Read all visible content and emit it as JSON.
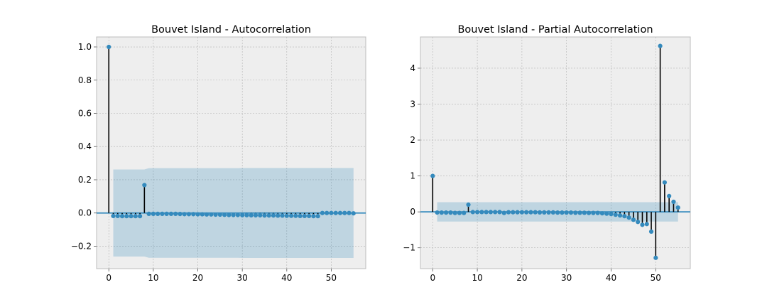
{
  "chart_data": [
    {
      "type": "stem",
      "title": "Bouvet Island - Autocorrelation",
      "xlabel": "",
      "ylabel": "",
      "xlim": [
        -2.75,
        57.75
      ],
      "ylim": [
        -0.335,
        1.06
      ],
      "grid": true,
      "x_ticks": [
        0,
        10,
        20,
        30,
        40,
        50
      ],
      "x_tick_labels": [
        "0",
        "10",
        "20",
        "30",
        "40",
        "50"
      ],
      "y_ticks": [
        -0.2,
        0.0,
        0.2,
        0.4,
        0.6,
        0.8,
        1.0
      ],
      "y_tick_labels": [
        "−0.2",
        "0.0",
        "0.2",
        "0.4",
        "0.6",
        "0.8",
        "1.0"
      ],
      "x": [
        0,
        1,
        2,
        3,
        4,
        5,
        6,
        7,
        8,
        9,
        10,
        11,
        12,
        13,
        14,
        15,
        16,
        17,
        18,
        19,
        20,
        21,
        22,
        23,
        24,
        25,
        26,
        27,
        28,
        29,
        30,
        31,
        32,
        33,
        34,
        35,
        36,
        37,
        38,
        39,
        40,
        41,
        42,
        43,
        44,
        45,
        46,
        47,
        48,
        49,
        50,
        51,
        52,
        53,
        54,
        55
      ],
      "values": [
        1.0,
        -0.018,
        -0.018,
        -0.019,
        -0.019,
        -0.019,
        -0.019,
        -0.019,
        0.168,
        -0.005,
        -0.005,
        -0.005,
        -0.005,
        -0.005,
        -0.005,
        -0.005,
        -0.006,
        -0.007,
        -0.007,
        -0.007,
        -0.008,
        -0.008,
        -0.009,
        -0.009,
        -0.01,
        -0.01,
        -0.011,
        -0.012,
        -0.012,
        -0.012,
        -0.013,
        -0.013,
        -0.014,
        -0.014,
        -0.014,
        -0.015,
        -0.015,
        -0.015,
        -0.016,
        -0.016,
        -0.017,
        -0.017,
        -0.017,
        -0.018,
        -0.018,
        -0.018,
        -0.019,
        -0.019,
        0.0,
        0.0,
        0.0,
        0.0,
        0.0,
        0.0,
        0.0,
        -0.002
      ],
      "confidence_band": {
        "x": [
          1,
          2,
          3,
          4,
          5,
          6,
          7,
          8,
          9,
          10,
          11,
          12,
          13,
          14,
          15,
          16,
          17,
          18,
          19,
          20,
          21,
          22,
          23,
          24,
          25,
          26,
          27,
          28,
          29,
          30,
          31,
          32,
          33,
          34,
          35,
          36,
          37,
          38,
          39,
          40,
          41,
          42,
          43,
          44,
          45,
          46,
          47,
          48,
          49,
          50,
          51,
          52,
          53,
          54,
          55
        ],
        "upper": [
          0.262,
          0.262,
          0.262,
          0.262,
          0.262,
          0.262,
          0.262,
          0.262,
          0.27,
          0.27,
          0.27,
          0.27,
          0.27,
          0.27,
          0.27,
          0.27,
          0.27,
          0.27,
          0.27,
          0.27,
          0.27,
          0.27,
          0.27,
          0.27,
          0.27,
          0.27,
          0.27,
          0.27,
          0.27,
          0.271,
          0.271,
          0.271,
          0.271,
          0.271,
          0.271,
          0.271,
          0.271,
          0.271,
          0.271,
          0.271,
          0.271,
          0.271,
          0.271,
          0.271,
          0.271,
          0.271,
          0.271,
          0.271,
          0.271,
          0.271,
          0.271,
          0.271,
          0.271,
          0.271,
          0.271
        ],
        "lower": [
          -0.262,
          -0.262,
          -0.262,
          -0.262,
          -0.262,
          -0.262,
          -0.262,
          -0.262,
          -0.27,
          -0.27,
          -0.27,
          -0.27,
          -0.27,
          -0.27,
          -0.27,
          -0.27,
          -0.27,
          -0.27,
          -0.27,
          -0.27,
          -0.27,
          -0.27,
          -0.27,
          -0.27,
          -0.27,
          -0.27,
          -0.27,
          -0.27,
          -0.27,
          -0.271,
          -0.271,
          -0.271,
          -0.271,
          -0.271,
          -0.271,
          -0.271,
          -0.271,
          -0.271,
          -0.271,
          -0.271,
          -0.271,
          -0.271,
          -0.271,
          -0.271,
          -0.271,
          -0.271,
          -0.271,
          -0.271,
          -0.271,
          -0.271,
          -0.271,
          -0.271,
          -0.271,
          -0.271,
          -0.271
        ]
      }
    },
    {
      "type": "stem",
      "title": "Bouvet Island - Partial Autocorrelation",
      "xlabel": "",
      "ylabel": "",
      "xlim": [
        -2.75,
        57.75
      ],
      "ylim": [
        -1.58,
        4.87
      ],
      "grid": true,
      "x_ticks": [
        0,
        10,
        20,
        30,
        40,
        50
      ],
      "x_tick_labels": [
        "0",
        "10",
        "20",
        "30",
        "40",
        "50"
      ],
      "y_ticks": [
        -1,
        0,
        1,
        2,
        3,
        4
      ],
      "y_tick_labels": [
        "−1",
        "0",
        "1",
        "2",
        "3",
        "4"
      ],
      "x": [
        0,
        1,
        2,
        3,
        4,
        5,
        6,
        7,
        8,
        9,
        10,
        11,
        12,
        13,
        14,
        15,
        16,
        17,
        18,
        19,
        20,
        21,
        22,
        23,
        24,
        25,
        26,
        27,
        28,
        29,
        30,
        31,
        32,
        33,
        34,
        35,
        36,
        37,
        38,
        39,
        40,
        41,
        42,
        43,
        44,
        45,
        46,
        47,
        48,
        49,
        50,
        51,
        52,
        53,
        54,
        55
      ],
      "values": [
        1.0,
        -0.018,
        -0.02,
        -0.02,
        -0.02,
        -0.03,
        -0.03,
        -0.03,
        0.2,
        -0.005,
        -0.005,
        -0.005,
        -0.005,
        -0.005,
        -0.005,
        -0.005,
        -0.03,
        -0.01,
        -0.01,
        -0.01,
        -0.01,
        -0.01,
        -0.01,
        -0.01,
        -0.015,
        -0.015,
        -0.015,
        -0.015,
        -0.02,
        -0.02,
        -0.02,
        -0.02,
        -0.025,
        -0.025,
        -0.025,
        -0.03,
        -0.03,
        -0.03,
        -0.04,
        -0.05,
        -0.06,
        -0.08,
        -0.1,
        -0.12,
        -0.16,
        -0.22,
        -0.28,
        -0.36,
        -0.34,
        -0.55,
        -1.28,
        4.62,
        0.82,
        0.44,
        0.28,
        0.12
      ],
      "confidence_band": {
        "x": [
          1,
          55
        ],
        "upper": [
          0.27,
          0.27
        ],
        "lower": [
          -0.27,
          -0.27
        ]
      }
    }
  ]
}
